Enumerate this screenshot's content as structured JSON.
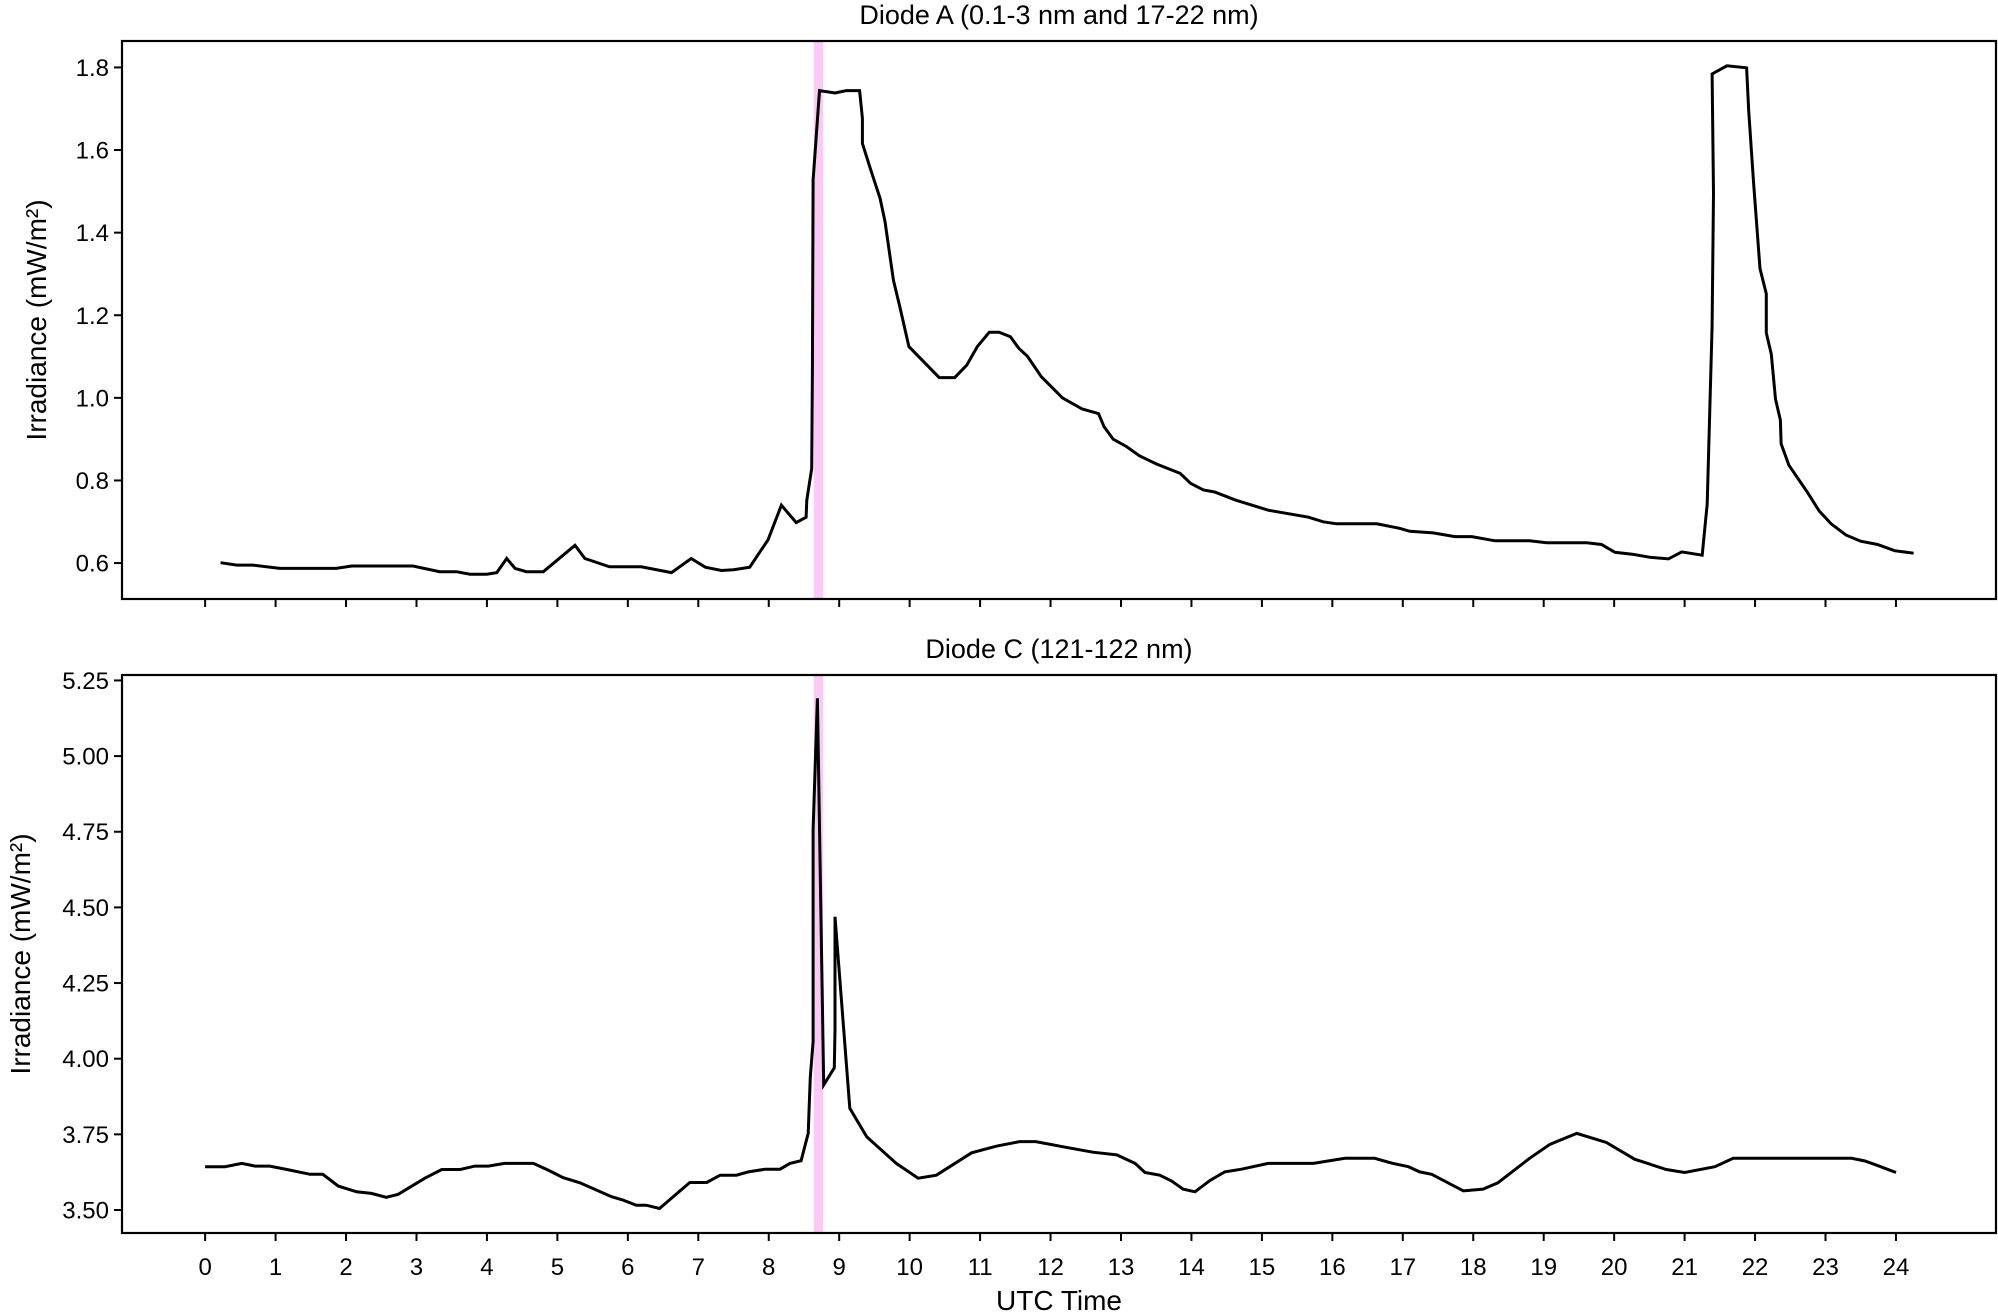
{
  "chart_data": [
    {
      "type": "line",
      "title": "Diode A (0.1-3 nm and 17-22 nm)",
      "xlabel": "",
      "ylabel": "Irradiance (mW/m²)",
      "xlim": [
        -1.18,
        25.42
      ],
      "ylim": [
        0.513,
        1.864
      ],
      "xticks": [
        0,
        1,
        2,
        3,
        4,
        5,
        6,
        7,
        8,
        9,
        10,
        11,
        12,
        13,
        14,
        15,
        16,
        17,
        18,
        19,
        20,
        21,
        22,
        23,
        24
      ],
      "xtick_labels_shown": false,
      "yticks": [
        "0.6",
        "0.8",
        "1.0",
        "1.2",
        "1.4",
        "1.6",
        "1.8"
      ],
      "grid": false,
      "highlight_band": {
        "x": [
          8.64,
          8.77
        ],
        "color": "#fbc9f5"
      },
      "line_color": "#000000",
      "points": [
        [
          0.22,
          0.601
        ],
        [
          0.45,
          0.595
        ],
        [
          0.68,
          0.595
        ],
        [
          1.06,
          0.587
        ],
        [
          1.86,
          0.587
        ],
        [
          2.08,
          0.593
        ],
        [
          2.95,
          0.593
        ],
        [
          3.33,
          0.579
        ],
        [
          3.57,
          0.579
        ],
        [
          3.76,
          0.573
        ],
        [
          4.0,
          0.573
        ],
        [
          4.14,
          0.577
        ],
        [
          4.28,
          0.611
        ],
        [
          4.4,
          0.587
        ],
        [
          4.56,
          0.579
        ],
        [
          4.8,
          0.579
        ],
        [
          5.25,
          0.643
        ],
        [
          5.39,
          0.611
        ],
        [
          5.74,
          0.591
        ],
        [
          6.19,
          0.591
        ],
        [
          6.62,
          0.577
        ],
        [
          6.9,
          0.611
        ],
        [
          7.1,
          0.59
        ],
        [
          7.33,
          0.582
        ],
        [
          7.5,
          0.584
        ],
        [
          7.73,
          0.59
        ],
        [
          7.99,
          0.656
        ],
        [
          8.18,
          0.74
        ],
        [
          8.39,
          0.698
        ],
        [
          8.53,
          0.711
        ],
        [
          8.54,
          0.752
        ],
        [
          8.61,
          0.829
        ],
        [
          8.62,
          1.06
        ],
        [
          8.63,
          1.527
        ],
        [
          8.72,
          1.744
        ],
        [
          8.94,
          1.738
        ],
        [
          9.1,
          1.744
        ],
        [
          9.29,
          1.744
        ],
        [
          9.33,
          1.677
        ],
        [
          9.33,
          1.616
        ],
        [
          9.44,
          1.556
        ],
        [
          9.58,
          1.483
        ],
        [
          9.65,
          1.427
        ],
        [
          9.77,
          1.285
        ],
        [
          9.86,
          1.221
        ],
        [
          9.99,
          1.124
        ],
        [
          10.42,
          1.049
        ],
        [
          10.64,
          1.049
        ],
        [
          10.81,
          1.079
        ],
        [
          10.96,
          1.124
        ],
        [
          11.13,
          1.159
        ],
        [
          11.27,
          1.159
        ],
        [
          11.43,
          1.148
        ],
        [
          11.55,
          1.12
        ],
        [
          11.67,
          1.101
        ],
        [
          11.87,
          1.051
        ],
        [
          12.17,
          1.0
        ],
        [
          12.45,
          0.973
        ],
        [
          12.68,
          0.962
        ],
        [
          12.76,
          0.93
        ],
        [
          12.89,
          0.9
        ],
        [
          13.08,
          0.882
        ],
        [
          13.26,
          0.86
        ],
        [
          13.5,
          0.84
        ],
        [
          13.84,
          0.817
        ],
        [
          13.99,
          0.793
        ],
        [
          14.17,
          0.777
        ],
        [
          14.33,
          0.772
        ],
        [
          14.62,
          0.753
        ],
        [
          15.09,
          0.728
        ],
        [
          15.66,
          0.711
        ],
        [
          15.87,
          0.7
        ],
        [
          16.06,
          0.695
        ],
        [
          16.63,
          0.695
        ],
        [
          16.96,
          0.684
        ],
        [
          17.1,
          0.677
        ],
        [
          17.43,
          0.673
        ],
        [
          17.74,
          0.664
        ],
        [
          17.98,
          0.664
        ],
        [
          18.31,
          0.654
        ],
        [
          18.8,
          0.654
        ],
        [
          19.04,
          0.649
        ],
        [
          19.61,
          0.649
        ],
        [
          19.82,
          0.645
        ],
        [
          20.01,
          0.626
        ],
        [
          20.27,
          0.621
        ],
        [
          20.51,
          0.614
        ],
        [
          20.77,
          0.61
        ],
        [
          20.96,
          0.627
        ],
        [
          21.25,
          0.619
        ],
        [
          21.32,
          0.743
        ],
        [
          21.39,
          1.174
        ],
        [
          21.41,
          1.495
        ],
        [
          21.39,
          1.784
        ],
        [
          21.6,
          1.804
        ],
        [
          21.88,
          1.799
        ],
        [
          21.91,
          1.695
        ],
        [
          21.98,
          1.52
        ],
        [
          22.07,
          1.313
        ],
        [
          22.16,
          1.252
        ],
        [
          22.16,
          1.157
        ],
        [
          22.23,
          1.106
        ],
        [
          22.29,
          0.997
        ],
        [
          22.36,
          0.946
        ],
        [
          22.37,
          0.889
        ],
        [
          22.48,
          0.837
        ],
        [
          22.74,
          0.772
        ],
        [
          22.91,
          0.726
        ],
        [
          23.08,
          0.695
        ],
        [
          23.29,
          0.668
        ],
        [
          23.5,
          0.653
        ],
        [
          23.74,
          0.645
        ],
        [
          23.98,
          0.63
        ],
        [
          24.25,
          0.624
        ]
      ]
    },
    {
      "type": "line",
      "title": "Diode C (121-122 nm)",
      "xlabel": "UTC Time",
      "ylabel": "Irradiance (mW/m²)",
      "xlim": [
        -1.18,
        25.42
      ],
      "ylim": [
        3.424,
        5.268
      ],
      "xticks": [
        "0",
        "1",
        "2",
        "3",
        "4",
        "5",
        "6",
        "7",
        "8",
        "9",
        "10",
        "11",
        "12",
        "13",
        "14",
        "15",
        "16",
        "17",
        "18",
        "19",
        "20",
        "21",
        "22",
        "23",
        "24"
      ],
      "yticks": [
        "3.50",
        "3.75",
        "4.00",
        "4.25",
        "4.50",
        "4.75",
        "5.00",
        "5.25"
      ],
      "grid": false,
      "highlight_band": {
        "x": [
          8.64,
          8.77
        ],
        "color": "#fbc9f5"
      },
      "line_color": "#000000",
      "points": [
        [
          0.0,
          3.643
        ],
        [
          0.28,
          3.643
        ],
        [
          0.52,
          3.654
        ],
        [
          0.71,
          3.645
        ],
        [
          0.92,
          3.645
        ],
        [
          1.16,
          3.634
        ],
        [
          1.49,
          3.618
        ],
        [
          1.67,
          3.618
        ],
        [
          1.89,
          3.579
        ],
        [
          2.15,
          3.56
        ],
        [
          2.36,
          3.555
        ],
        [
          2.57,
          3.542
        ],
        [
          2.74,
          3.552
        ],
        [
          3.12,
          3.605
        ],
        [
          3.36,
          3.634
        ],
        [
          3.62,
          3.634
        ],
        [
          3.83,
          3.645
        ],
        [
          4.02,
          3.645
        ],
        [
          4.25,
          3.654
        ],
        [
          4.66,
          3.654
        ],
        [
          4.87,
          3.632
        ],
        [
          5.08,
          3.607
        ],
        [
          5.32,
          3.59
        ],
        [
          5.77,
          3.544
        ],
        [
          5.93,
          3.533
        ],
        [
          6.12,
          3.516
        ],
        [
          6.26,
          3.516
        ],
        [
          6.45,
          3.505
        ],
        [
          6.88,
          3.591
        ],
        [
          7.12,
          3.591
        ],
        [
          7.31,
          3.615
        ],
        [
          7.54,
          3.615
        ],
        [
          7.71,
          3.626
        ],
        [
          7.95,
          3.635
        ],
        [
          8.16,
          3.635
        ],
        [
          8.3,
          3.654
        ],
        [
          8.46,
          3.663
        ],
        [
          8.56,
          3.753
        ],
        [
          8.59,
          3.94
        ],
        [
          8.63,
          4.056
        ],
        [
          8.63,
          4.756
        ],
        [
          8.69,
          5.191
        ],
        [
          8.78,
          3.913
        ],
        [
          8.93,
          3.97
        ],
        [
          8.94,
          4.095
        ],
        [
          8.94,
          4.469
        ],
        [
          9.15,
          3.836
        ],
        [
          9.39,
          3.742
        ],
        [
          9.81,
          3.654
        ],
        [
          10.12,
          3.605
        ],
        [
          10.38,
          3.615
        ],
        [
          10.88,
          3.689
        ],
        [
          11.23,
          3.711
        ],
        [
          11.56,
          3.726
        ],
        [
          11.79,
          3.726
        ],
        [
          12.18,
          3.709
        ],
        [
          12.6,
          3.691
        ],
        [
          12.94,
          3.682
        ],
        [
          13.2,
          3.654
        ],
        [
          13.34,
          3.624
        ],
        [
          13.55,
          3.615
        ],
        [
          13.72,
          3.596
        ],
        [
          13.88,
          3.569
        ],
        [
          14.05,
          3.56
        ],
        [
          14.26,
          3.597
        ],
        [
          14.47,
          3.626
        ],
        [
          14.71,
          3.635
        ],
        [
          15.09,
          3.654
        ],
        [
          15.73,
          3.654
        ],
        [
          16.18,
          3.671
        ],
        [
          16.6,
          3.671
        ],
        [
          16.86,
          3.654
        ],
        [
          17.08,
          3.643
        ],
        [
          17.24,
          3.626
        ],
        [
          17.41,
          3.618
        ],
        [
          17.86,
          3.563
        ],
        [
          18.14,
          3.569
        ],
        [
          18.35,
          3.59
        ],
        [
          18.8,
          3.671
        ],
        [
          19.09,
          3.717
        ],
        [
          19.47,
          3.753
        ],
        [
          19.89,
          3.723
        ],
        [
          20.29,
          3.668
        ],
        [
          20.74,
          3.634
        ],
        [
          21.0,
          3.624
        ],
        [
          21.43,
          3.643
        ],
        [
          21.69,
          3.671
        ],
        [
          23.37,
          3.671
        ],
        [
          23.56,
          3.662
        ],
        [
          23.75,
          3.646
        ],
        [
          24.0,
          3.624
        ]
      ]
    }
  ]
}
